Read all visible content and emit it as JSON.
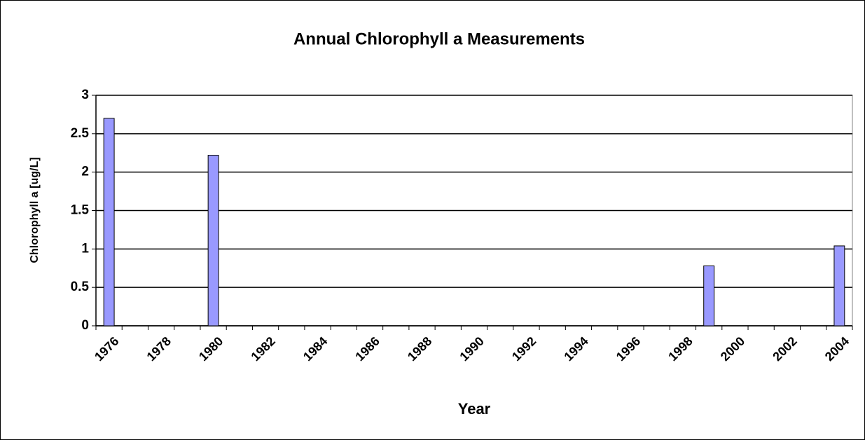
{
  "chart_data": {
    "type": "bar",
    "title": "Annual Chlorophyll a Measurements",
    "x_label": "Year",
    "y_label": "Chlorophyll a [ug/L]",
    "categories": [
      "1976",
      null,
      "1978",
      null,
      "1980",
      null,
      "1982",
      null,
      "1984",
      null,
      "1986",
      null,
      "1988",
      null,
      "1990",
      null,
      "1992",
      null,
      "1994",
      null,
      "1996",
      null,
      "1998",
      null,
      "2000",
      null,
      "2002",
      null,
      "2004"
    ],
    "values": [
      2.7,
      null,
      null,
      null,
      2.22,
      null,
      null,
      null,
      null,
      null,
      null,
      null,
      null,
      null,
      null,
      null,
      null,
      null,
      null,
      null,
      null,
      null,
      null,
      0.78,
      null,
      null,
      null,
      null,
      1.04
    ],
    "color": "#9999ff",
    "ylim": [
      0,
      3
    ],
    "yticks": [
      0,
      0.5,
      1,
      1.5,
      2,
      2.5,
      3
    ],
    "grid": true
  }
}
